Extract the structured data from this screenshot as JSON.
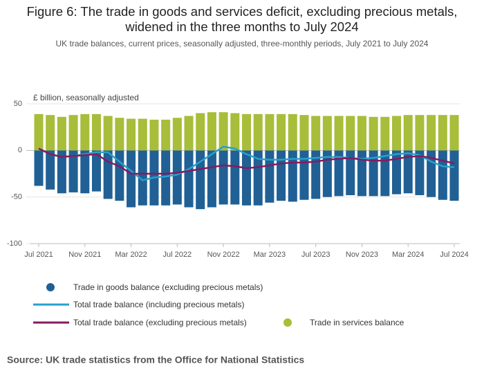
{
  "chart_data": {
    "type": "bar",
    "stacked": true,
    "title": "Figure 6: The trade in goods and services deficit, excluding precious metals, widened in the three months to July 2024",
    "subtitle": "UK trade balances, current prices, seasonally adjusted, three-monthly periods, July 2021 to July 2024",
    "y_label": "£ billion, seasonally adjusted",
    "source": "Source: UK trade statistics from the Office for National Statistics",
    "categories": [
      "Jul 2021",
      null,
      null,
      null,
      "Nov 2021",
      null,
      null,
      null,
      "Mar 2022",
      null,
      null,
      null,
      "Jul 2022",
      null,
      null,
      null,
      "Nov 2022",
      null,
      null,
      null,
      "Mar 2023",
      null,
      null,
      null,
      "Jul 2023",
      null,
      null,
      null,
      "Nov 2023",
      null,
      null,
      null,
      "Mar 2024",
      null,
      null,
      null,
      "Jul 2024"
    ],
    "ylim": [
      -100,
      50
    ],
    "yticks": [
      50,
      0,
      -50,
      -100
    ],
    "grid": true,
    "series": [
      {
        "name": "Trade in goods balance (excluding precious metals)",
        "type": "bar",
        "color": "#206095",
        "values": [
          -38,
          -42,
          -46,
          -45,
          -46,
          -44,
          -52,
          -54,
          -61,
          -59,
          -59,
          -59,
          -58,
          -61,
          -63,
          -61,
          -58,
          -58,
          -59,
          -59,
          -56,
          -54,
          -55,
          -53,
          -52,
          -50,
          -49,
          -48,
          -49,
          -49,
          -49,
          -47,
          -46,
          -48,
          -50,
          -53,
          -54
        ]
      },
      {
        "name": "Total trade balance (including precious metals)",
        "type": "line",
        "color": "#27a0cc",
        "values": [
          2,
          -4,
          -7,
          -6,
          -4,
          -2,
          -2,
          -12,
          -22,
          -32,
          -29,
          -28,
          -26,
          -20,
          -12,
          -4,
          4,
          2,
          -4,
          -9,
          -10,
          -10,
          -9,
          -9,
          -8,
          -7,
          -7,
          -8,
          -9,
          -8,
          -6,
          -4,
          -3,
          -5,
          -12,
          -17,
          -18
        ]
      },
      {
        "name": "Total trade balance (excluding precious metals)",
        "type": "line",
        "color": "#871a5b",
        "values": [
          2,
          -4,
          -7,
          -6,
          -5,
          -4,
          -12,
          -17,
          -25,
          -25,
          -25,
          -25,
          -24,
          -22,
          -20,
          -18,
          -16,
          -17,
          -19,
          -18,
          -16,
          -14,
          -13,
          -13,
          -12,
          -10,
          -9,
          -8,
          -10,
          -11,
          -11,
          -9,
          -7,
          -6,
          -8,
          -11,
          -14
        ]
      },
      {
        "name": "Trade in services balance",
        "type": "bar",
        "color": "#a8bd3a",
        "values": [
          39,
          38,
          36,
          38,
          39,
          39,
          37,
          35,
          34,
          34,
          33,
          33,
          35,
          37,
          40,
          41,
          41,
          40,
          39,
          39,
          39,
          39,
          39,
          38,
          37,
          37,
          37,
          37,
          37,
          36,
          36,
          37,
          38,
          38,
          38,
          38,
          38
        ]
      }
    ]
  }
}
